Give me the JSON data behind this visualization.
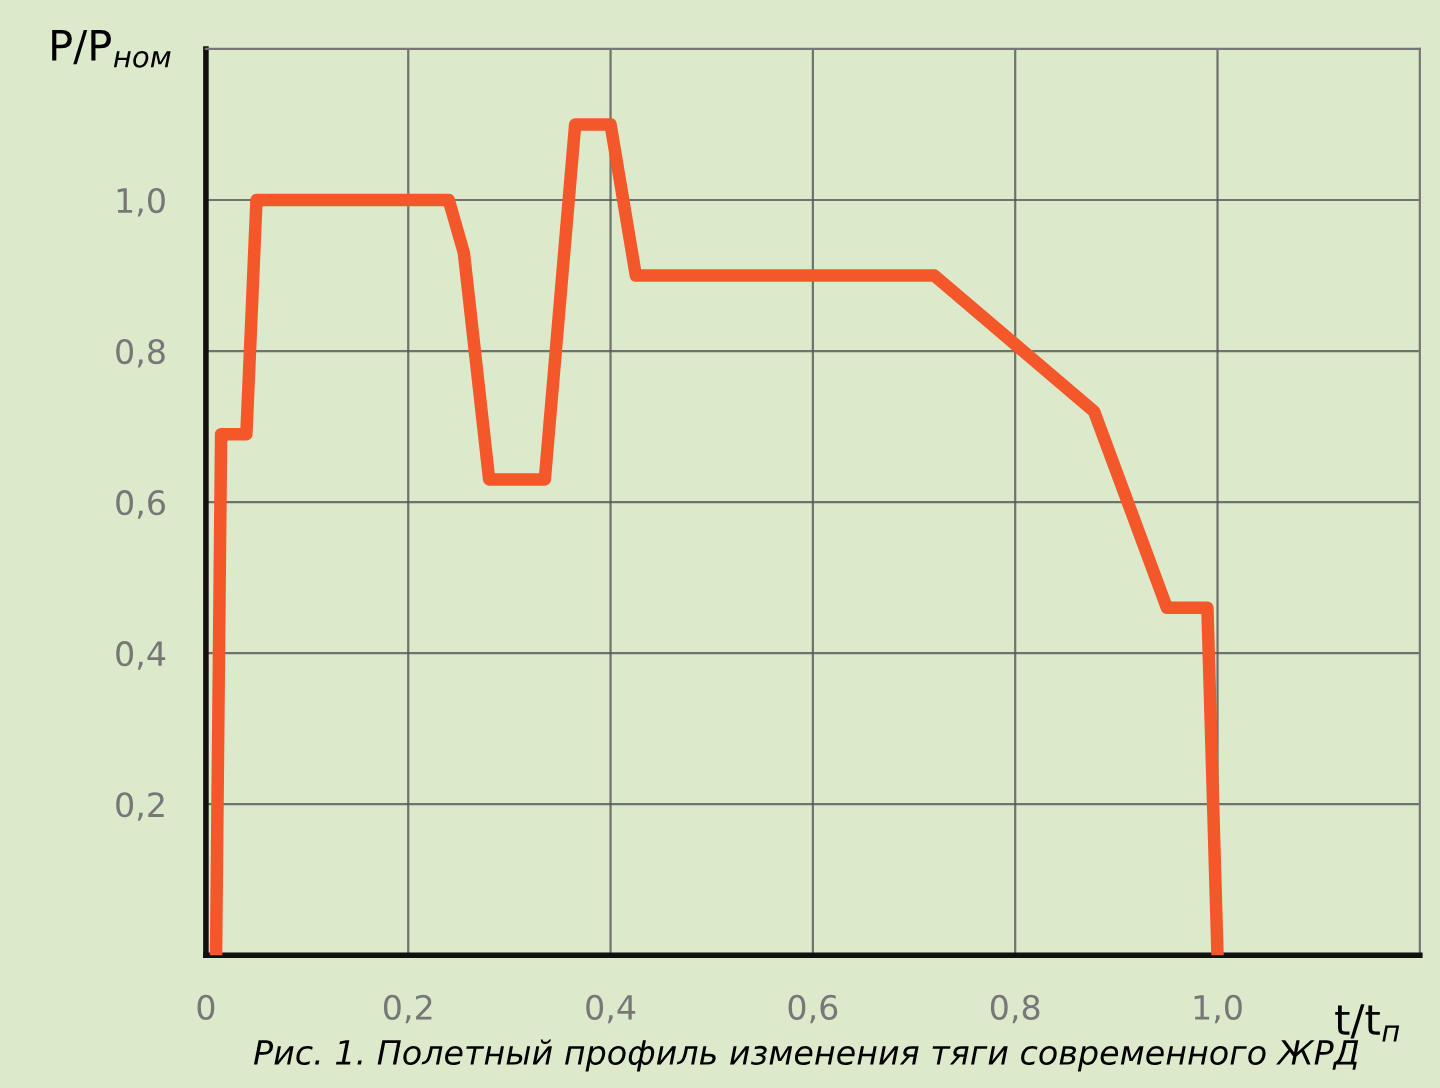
{
  "chart_data": {
    "type": "line",
    "xlabel": "t/t$_{п}$",
    "ylabel": "P/P$_{ном}$",
    "annotations": [
      "Рис. 1. Полетный профиль изменения тяги современного ЖРД"
    ],
    "series": [
      {
        "color": "#f4572a",
        "x": [
          0.01,
          0.015,
          0.04,
          0.05,
          0.24,
          0.255,
          0.28,
          0.335,
          0.365,
          0.4,
          0.425,
          0.72,
          0.878,
          0.95,
          0.99,
          1.0
        ],
        "values": [
          0,
          0.69,
          0.69,
          1.0,
          1.0,
          0.93,
          0.63,
          0.63,
          1.1,
          1.1,
          0.9,
          0.9,
          0.72,
          0.46,
          0.46,
          0
        ]
      }
    ],
    "xlim": [
      0,
      1.2
    ],
    "ylim": [
      0,
      1.2
    ],
    "xticks": [
      0,
      {
        "value": 0.2,
        "label": "0,2"
      },
      {
        "value": 0.4,
        "label": "0,4"
      },
      {
        "value": 0.6,
        "label": "0,6"
      },
      {
        "value": 0.8,
        "label": "0,8"
      },
      {
        "value": 1.0,
        "label": "1,0"
      }
    ],
    "yticks": [
      {
        "value": 0.2,
        "label": "0,2"
      },
      {
        "value": 0.4,
        "label": "0,4"
      },
      {
        "value": 0.6,
        "label": "0,6"
      },
      {
        "value": 0.8,
        "label": "0,8"
      },
      {
        "value": 1.0,
        "label": "1,0"
      }
    ],
    "grid": true,
    "line_style": "solid",
    "marker": "none"
  }
}
